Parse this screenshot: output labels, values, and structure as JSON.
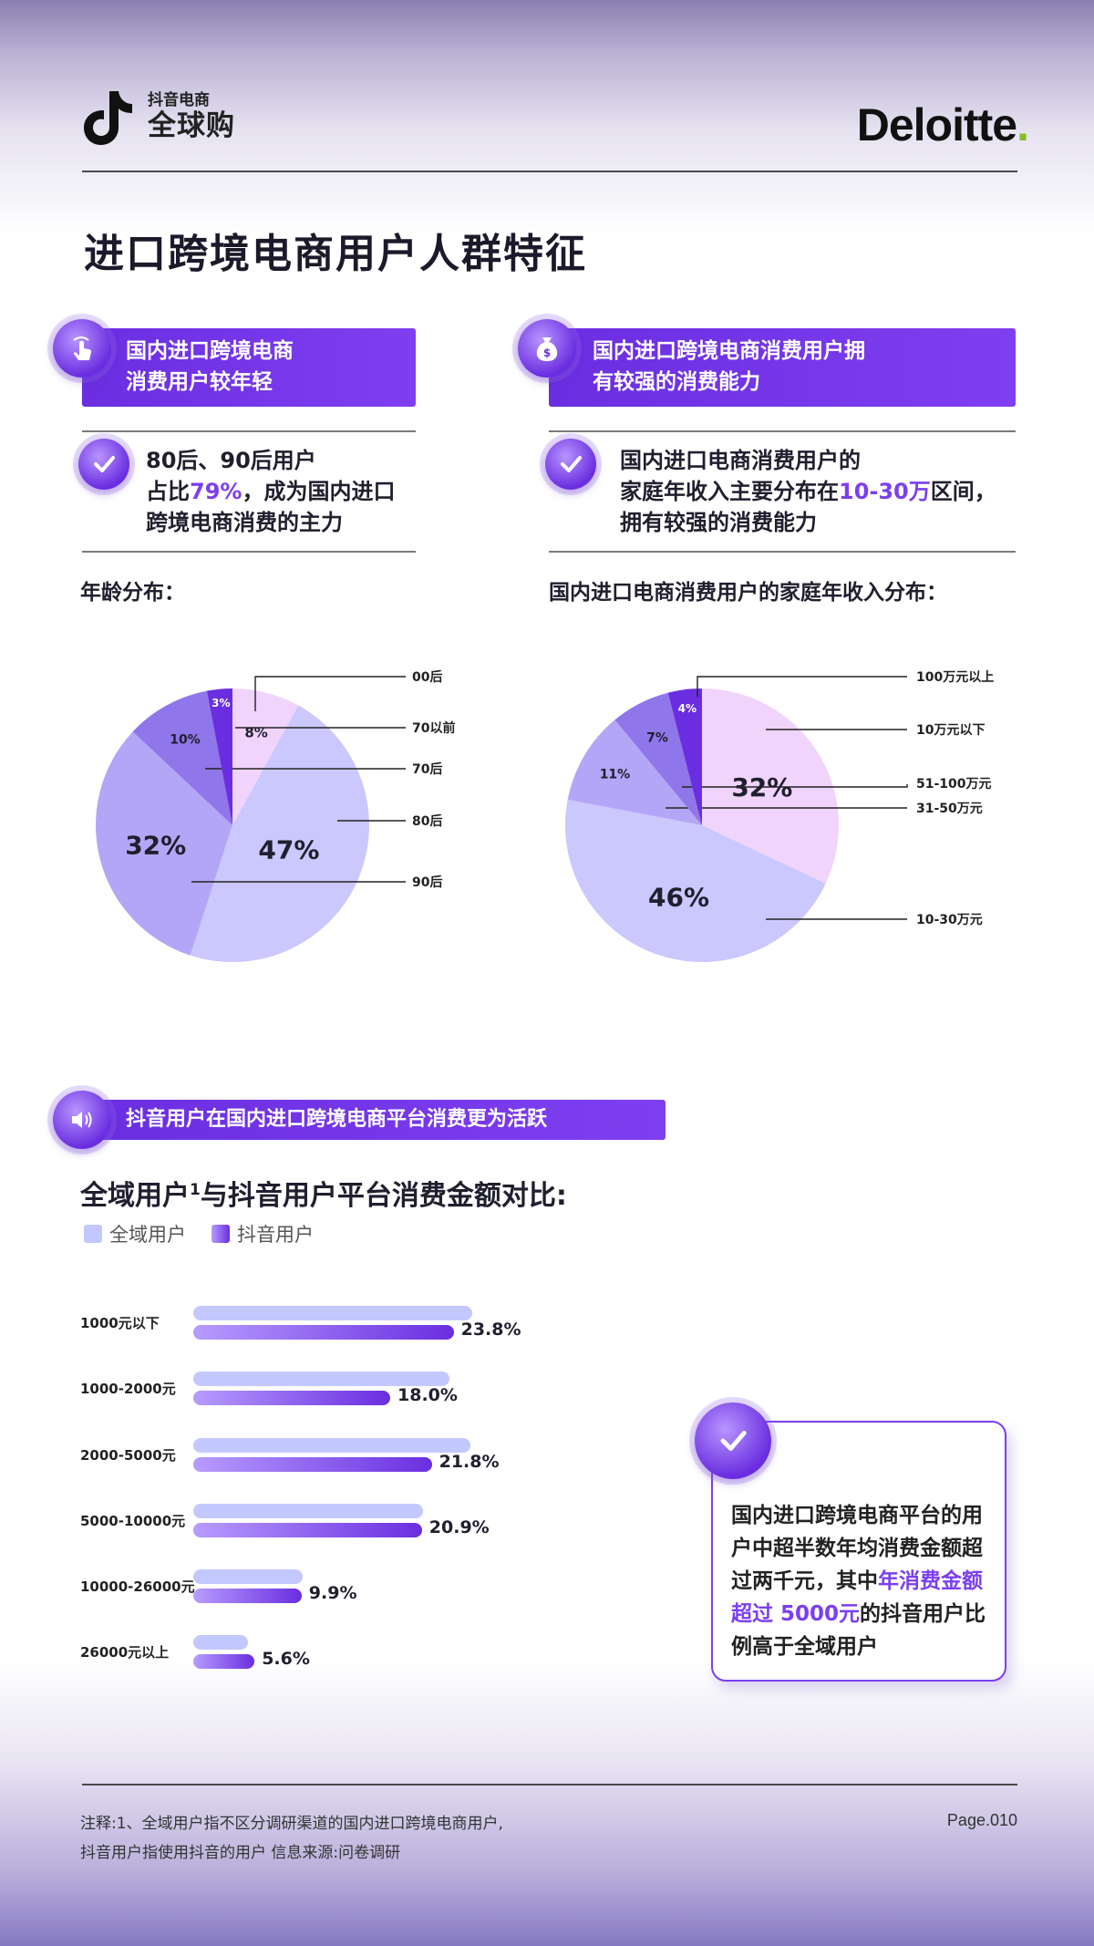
{
  "header": {
    "brand_sub": "抖音电商",
    "brand_main": "全球购",
    "partner_name": "Deloitte",
    "partner_dot": ".",
    "page_title": "进口跨境电商用户人群特征"
  },
  "left_panel": {
    "banner_line1": "国内进口跨境电商",
    "banner_line2": "消费用户较年轻",
    "point_line1": "80后、90后用户",
    "point_line2_pre": "占比",
    "point_line2_hl": "79%",
    "point_line2_post": "，成为国内进口",
    "point_line3": "跨境电商消费的主力",
    "chart_label": "年龄分布："
  },
  "right_panel": {
    "banner_line1": "国内进口跨境电商消费用户拥",
    "banner_line2": "有较强的消费能力",
    "point_line1": "国内进口电商消费用户的",
    "point_line2_pre": "家庭年收入主要分布在",
    "point_line2_hl": "10-30万",
    "point_line2_post": "区间，",
    "point_line3": "拥有较强的消费能力",
    "chart_label": "国内进口电商消费用户的家庭年收入分布："
  },
  "bottom_section": {
    "banner": "抖音用户在国内进口跨境电商平台消费更为活跃",
    "chart_title": "全域用户",
    "chart_title_sup": "1",
    "chart_title_rest": "与抖音用户平台消费金额对比:",
    "legend_all": "全域用户",
    "legend_douyin": "抖音用户",
    "callout_pre": "国内进口跨境电商平台的用户中超半数年均消费金额超过两千元，其中",
    "callout_hl": "年消费金额超过 5000元",
    "callout_post": "的抖音用户比例高于全域用户"
  },
  "footer": {
    "note_line1": "注释:1、全域用户指不区分调研渠道的国内进口跨境电商用户,",
    "note_line2": "抖音用户指使用抖音的用户 信息来源:问卷调研",
    "page": "Page.010"
  },
  "colors": {
    "accent": "#7b3ff0",
    "banner": "#6a2ee0",
    "bar_all": "#c3c8ff",
    "deloitte_green": "#86bc25"
  },
  "icons": {
    "left_badge": "hand-tap-icon",
    "right_badge": "money-bag-icon",
    "bottom_badge": "speaker-icon",
    "check": "check-icon"
  },
  "chart_data": [
    {
      "type": "pie",
      "title": "年龄分布：",
      "slices": [
        {
          "label": "00后",
          "value": 8,
          "display": "8%",
          "color": "#f0d4fc"
        },
        {
          "label": "80后",
          "value": 47,
          "display": "47%",
          "color": "#cbc8fe"
        },
        {
          "label": "90后",
          "value": 32,
          "display": "32%",
          "color": "#b4a6f6"
        },
        {
          "label": "70后",
          "value": 10,
          "display": "10%",
          "color": "#8f76ea"
        },
        {
          "label": "70以前",
          "value": 3,
          "display": "3%",
          "color": "#6a2ee0"
        }
      ]
    },
    {
      "type": "pie",
      "title": "国内进口电商消费用户的家庭年收入分布：",
      "slices": [
        {
          "label": "10万元以下",
          "value": 32,
          "display": "32%",
          "color": "#f0d4fc"
        },
        {
          "label": "10-30万元",
          "value": 46,
          "display": "46%",
          "color": "#cbc8fe"
        },
        {
          "label": "31-50万元",
          "value": 11,
          "display": "11%",
          "color": "#b4a6f6"
        },
        {
          "label": "51-100万元",
          "value": 7,
          "display": "7%",
          "color": "#8f76ea"
        },
        {
          "label": "100万元以上",
          "value": 4,
          "display": "4%",
          "color": "#6a2ee0"
        }
      ]
    },
    {
      "type": "bar",
      "orientation": "horizontal",
      "title": "全域用户¹与抖音用户平台消费金额对比:",
      "categories": [
        "1000元以下",
        "1000-2000元",
        "2000-5000元",
        "5000-10000元",
        "10000-26000元",
        "26000元以上"
      ],
      "series": [
        {
          "name": "全域用户",
          "values": [
            25.5,
            23.4,
            25.3,
            21.0,
            10.0,
            5.0
          ],
          "labeled": false
        },
        {
          "name": "抖音用户",
          "values": [
            23.8,
            18.0,
            21.8,
            20.9,
            9.9,
            5.6
          ],
          "labeled": true
        }
      ],
      "value_labels": [
        "23.8%",
        "18.0%",
        "21.8%",
        "20.9%",
        "9.9%",
        "5.6%"
      ],
      "legend": "top-left"
    }
  ]
}
